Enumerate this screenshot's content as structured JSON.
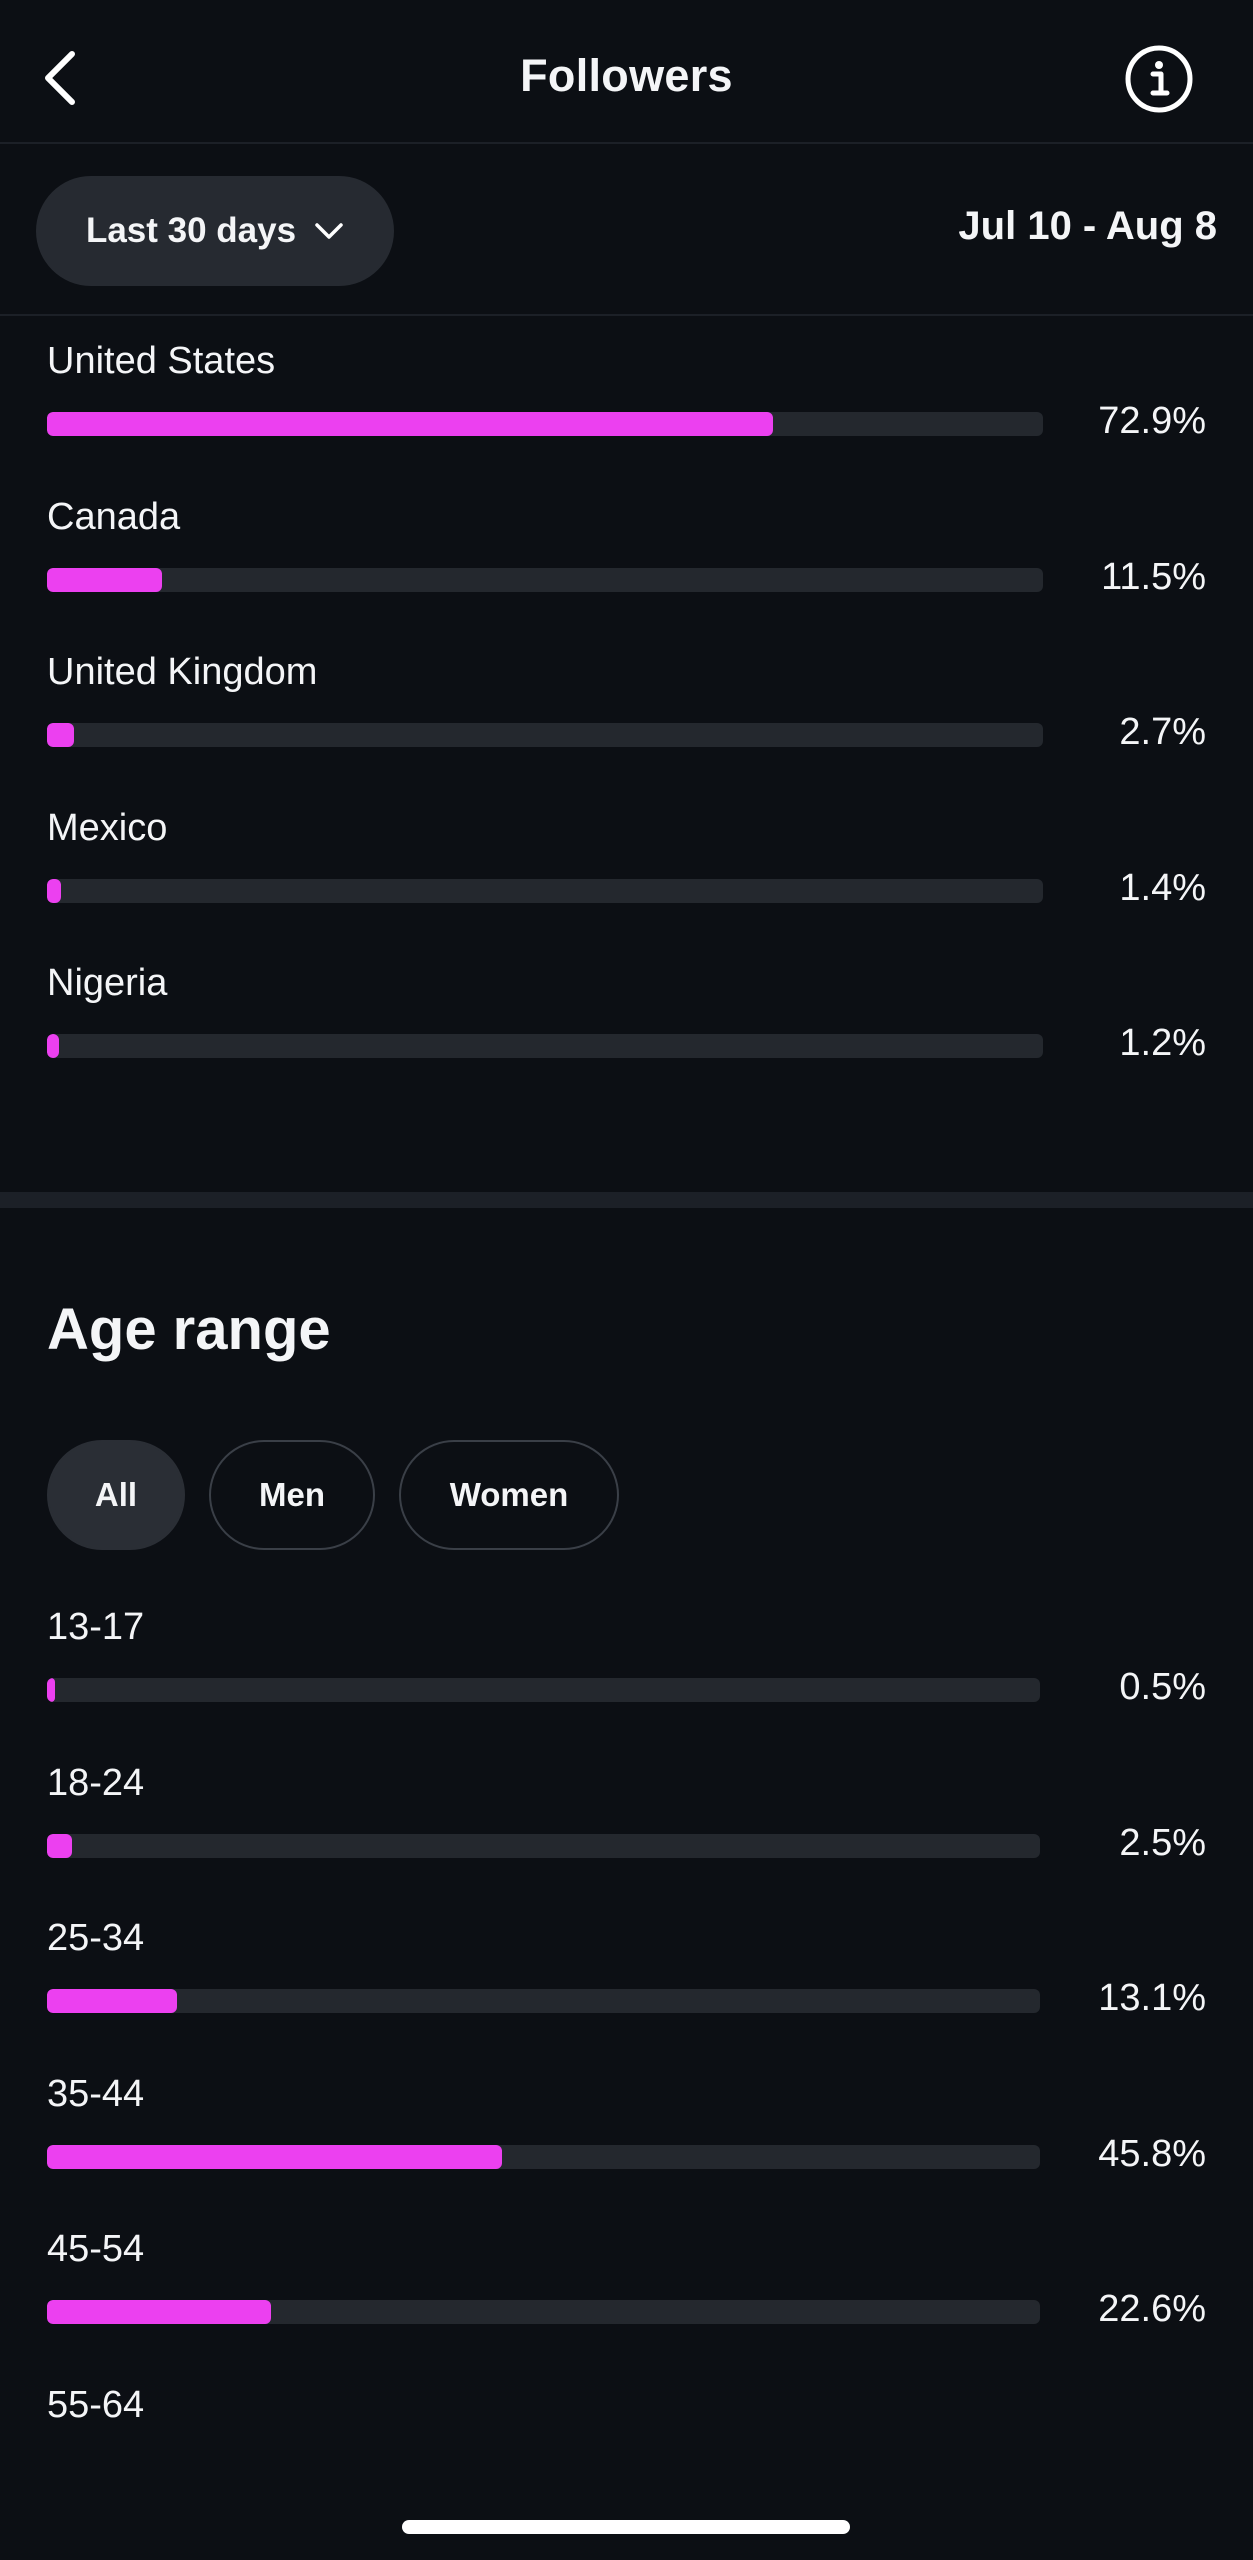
{
  "header": {
    "title": "Followers"
  },
  "filter": {
    "range_label": "Last 30 days",
    "date_range": "Jul 10 - Aug 8"
  },
  "countries": [
    {
      "label": "United States",
      "value": "72.9%",
      "fraction": 0.729
    },
    {
      "label": "Canada",
      "value": "11.5%",
      "fraction": 0.115
    },
    {
      "label": "United Kingdom",
      "value": "2.7%",
      "fraction": 0.027
    },
    {
      "label": "Mexico",
      "value": "1.4%",
      "fraction": 0.014
    },
    {
      "label": "Nigeria",
      "value": "1.2%",
      "fraction": 0.012
    }
  ],
  "age_section": {
    "title": "Age range",
    "chips": [
      "All",
      "Men",
      "Women"
    ],
    "active_chip": "All"
  },
  "ages": [
    {
      "label": "13-17",
      "value": "0.5%",
      "fraction": 0.005
    },
    {
      "label": "18-24",
      "value": "2.5%",
      "fraction": 0.025
    },
    {
      "label": "25-34",
      "value": "13.1%",
      "fraction": 0.131
    },
    {
      "label": "35-44",
      "value": "45.8%",
      "fraction": 0.458
    },
    {
      "label": "45-54",
      "value": "22.6%",
      "fraction": 0.226
    },
    {
      "label": "55-64",
      "value": "",
      "fraction": null
    }
  ],
  "colors": {
    "background": "#0c0f14",
    "bar_fill": "#ec40f0",
    "bar_track": "#24282e"
  },
  "icons": {
    "back": "chevron-left-icon",
    "info": "info-circle-icon",
    "dropdown": "chevron-down-icon"
  }
}
